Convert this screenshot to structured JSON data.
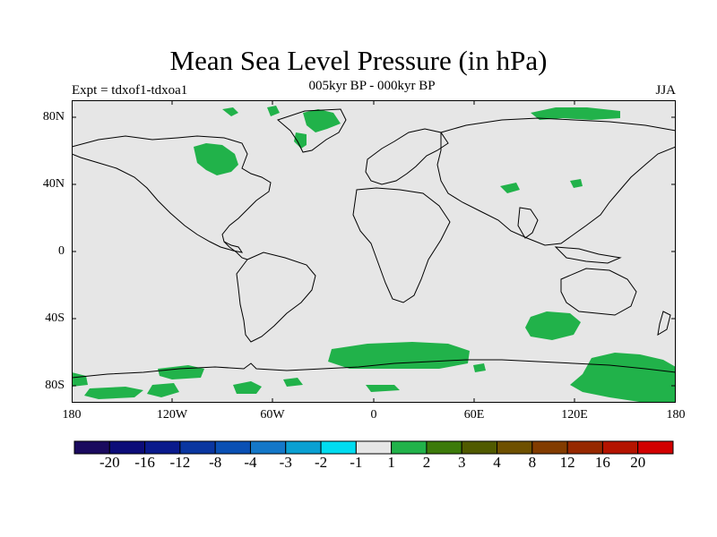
{
  "title": "Mean Sea Level Pressure (in hPa)",
  "subtitle": "005kyr BP - 000kyr BP",
  "experiment": "Expt = tdxof1-tdxoa1",
  "season": "JJA",
  "y_axis_labels": [
    "80N",
    "40N",
    "0",
    "40S",
    "80S"
  ],
  "x_axis_labels": [
    "180",
    "120W",
    "60W",
    "0",
    "60E",
    "120E",
    "180"
  ],
  "colorbar": {
    "colors": [
      "#1a0a5e",
      "#0c0c78",
      "#0a1a8c",
      "#0a36a0",
      "#0a50b4",
      "#1477c8",
      "#0aa0d2",
      "#00dcf0",
      "#e6e6e6",
      "#21b24a",
      "#3c7a0a",
      "#505a00",
      "#6e5000",
      "#823c00",
      "#962800",
      "#b41400",
      "#d20000"
    ],
    "labels": [
      "-20",
      "-16",
      "-12",
      "-8",
      "-4",
      "-3",
      "-2",
      "-1",
      "1",
      "2",
      "3",
      "4",
      "8",
      "12",
      "16",
      "20"
    ]
  },
  "map": {
    "background": "#e6e6e6",
    "anomaly_color": "#21b24a",
    "coast_color": "#000000"
  }
}
